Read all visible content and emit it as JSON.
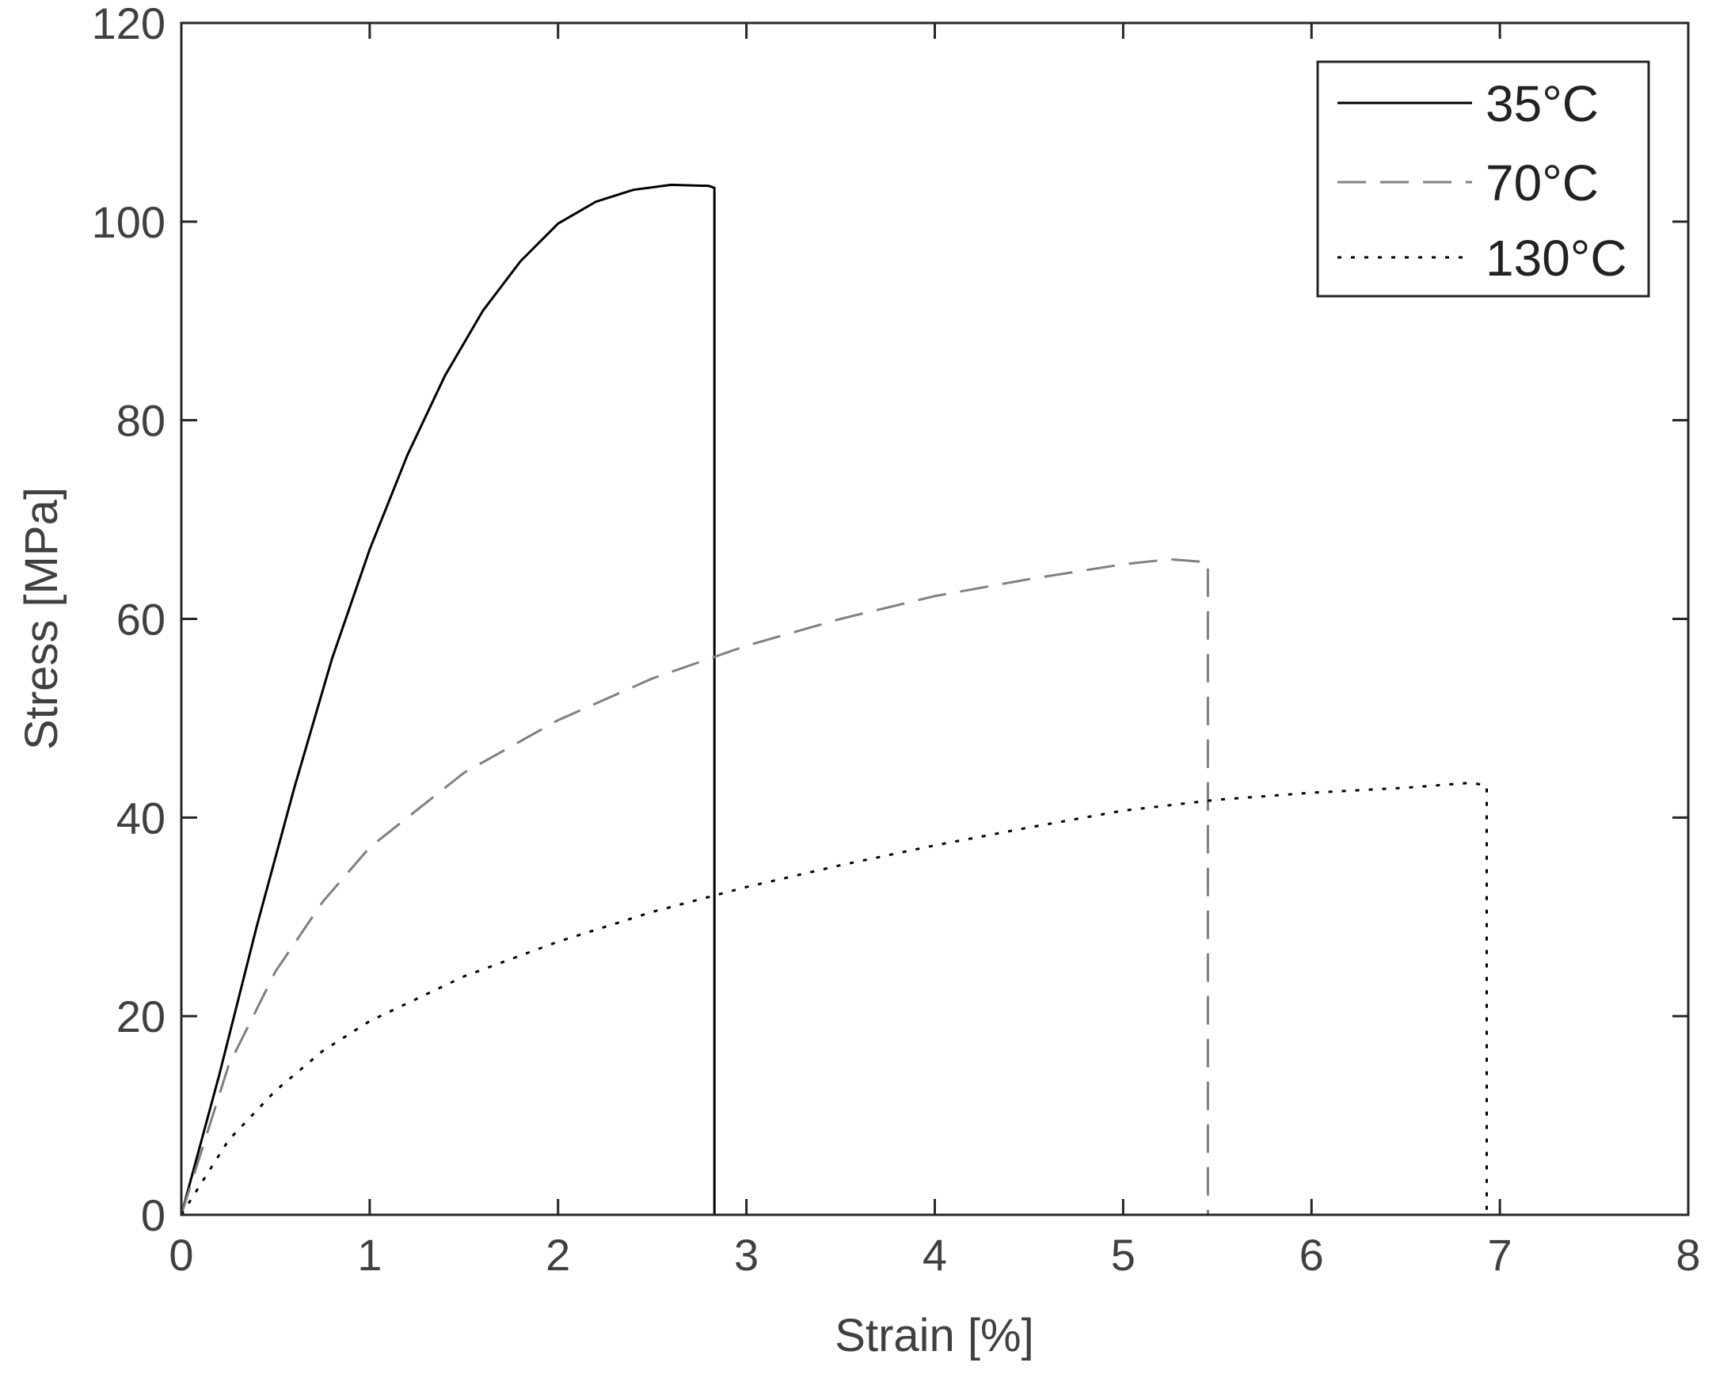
{
  "chart_data": {
    "type": "line",
    "title": "",
    "xlabel": "Strain [%]",
    "ylabel": "Stress [MPa]",
    "xlim": [
      0,
      8
    ],
    "ylim": [
      0,
      120
    ],
    "xticks": [
      0,
      1,
      2,
      3,
      4,
      5,
      6,
      7,
      8
    ],
    "yticks": [
      0,
      20,
      40,
      60,
      80,
      100,
      120
    ],
    "grid": false,
    "legend_position": "top-right",
    "series": [
      {
        "name": "35°C",
        "color": "#000000",
        "dash": "solid",
        "points": [
          [
            0,
            0
          ],
          [
            0.2,
            14
          ],
          [
            0.4,
            29
          ],
          [
            0.6,
            43
          ],
          [
            0.8,
            56
          ],
          [
            1.0,
            67
          ],
          [
            1.2,
            76.5
          ],
          [
            1.4,
            84.5
          ],
          [
            1.6,
            91
          ],
          [
            1.8,
            96
          ],
          [
            2.0,
            99.8
          ],
          [
            2.2,
            102
          ],
          [
            2.4,
            103.2
          ],
          [
            2.6,
            103.7
          ],
          [
            2.8,
            103.6
          ],
          [
            2.83,
            103.4
          ],
          [
            2.83,
            0
          ]
        ]
      },
      {
        "name": "70°C",
        "color": "#808080",
        "dash": "dashed",
        "points": [
          [
            0,
            0
          ],
          [
            0.25,
            15
          ],
          [
            0.5,
            24.5
          ],
          [
            0.75,
            31.5
          ],
          [
            1.0,
            37
          ],
          [
            1.5,
            44.5
          ],
          [
            2.0,
            49.8
          ],
          [
            2.5,
            54
          ],
          [
            3.0,
            57.3
          ],
          [
            3.5,
            60
          ],
          [
            4.0,
            62.3
          ],
          [
            4.5,
            64
          ],
          [
            5.0,
            65.5
          ],
          [
            5.25,
            66
          ],
          [
            5.45,
            65.7
          ],
          [
            5.45,
            0
          ]
        ]
      },
      {
        "name": "130°C",
        "color": "#000000",
        "dash": "dotted",
        "points": [
          [
            0,
            0
          ],
          [
            0.25,
            7.5
          ],
          [
            0.5,
            12.5
          ],
          [
            0.75,
            16.5
          ],
          [
            1.0,
            19.5
          ],
          [
            1.5,
            24
          ],
          [
            2.0,
            27.5
          ],
          [
            2.5,
            30.5
          ],
          [
            3.0,
            33
          ],
          [
            3.5,
            35.2
          ],
          [
            4.0,
            37.2
          ],
          [
            4.5,
            39
          ],
          [
            5.0,
            40.7
          ],
          [
            5.5,
            41.8
          ],
          [
            6.0,
            42.5
          ],
          [
            6.5,
            43
          ],
          [
            6.85,
            43.5
          ],
          [
            6.93,
            43.2
          ],
          [
            6.93,
            0
          ]
        ]
      }
    ]
  }
}
